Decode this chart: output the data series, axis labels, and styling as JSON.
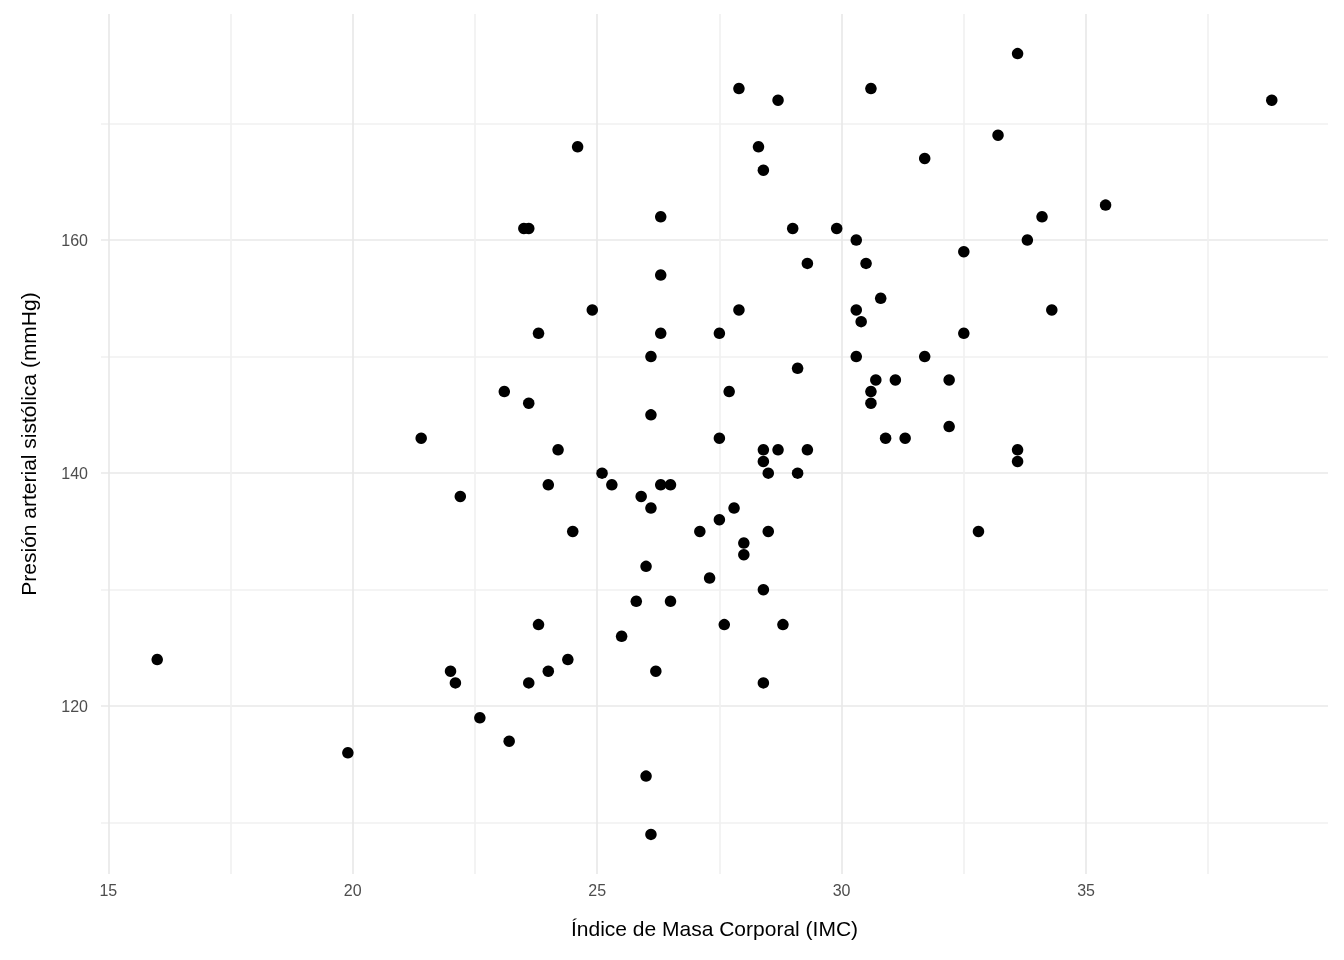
{
  "chart_data": {
    "type": "scatter",
    "xlabel": "Índice de Masa Corporal (IMC)",
    "ylabel": "Presión arterial sistólica (mmHg)",
    "x": [
      16.0,
      19.9,
      21.4,
      22.0,
      22.1,
      22.2,
      22.6,
      23.1,
      23.2,
      23.5,
      23.6,
      23.6,
      23.6,
      23.8,
      23.8,
      24.0,
      24.0,
      24.2,
      24.4,
      24.5,
      24.6,
      24.9,
      25.1,
      25.3,
      25.5,
      25.8,
      25.9,
      26.0,
      26.0,
      26.1,
      26.1,
      26.1,
      26.1,
      26.2,
      26.3,
      26.3,
      26.3,
      26.3,
      26.5,
      26.5,
      27.1,
      27.3,
      27.5,
      27.5,
      27.5,
      27.6,
      27.7,
      27.8,
      27.9,
      27.9,
      28.0,
      28.0,
      28.3,
      28.4,
      28.4,
      28.4,
      28.4,
      28.4,
      28.5,
      28.5,
      28.7,
      28.7,
      28.8,
      29.0,
      29.1,
      29.1,
      29.3,
      29.3,
      29.9,
      30.3,
      30.3,
      30.3,
      30.4,
      30.5,
      30.6,
      30.6,
      30.6,
      30.7,
      30.8,
      30.9,
      31.1,
      31.3,
      31.7,
      31.7,
      32.2,
      32.2,
      32.5,
      32.5,
      32.8,
      33.2,
      33.6,
      33.6,
      33.6,
      33.8,
      34.1,
      34.3,
      35.4,
      38.8
    ],
    "series": [
      {
        "color": "#000000",
        "values": [
          124,
          116,
          143,
          123,
          122,
          138,
          119,
          147,
          117,
          161,
          161,
          146,
          122,
          152,
          127,
          139,
          123,
          142,
          124,
          135,
          168,
          154,
          140,
          139,
          126,
          129,
          138,
          132,
          114,
          150,
          145,
          137,
          109,
          123,
          162,
          157,
          152,
          139,
          139,
          129,
          135,
          131,
          152,
          143,
          136,
          127,
          147,
          137,
          173,
          154,
          134,
          133,
          168,
          166,
          142,
          141,
          130,
          122,
          140,
          135,
          172,
          142,
          127,
          161,
          149,
          140,
          158,
          142,
          161,
          160,
          154,
          150,
          153,
          158,
          173,
          147,
          146,
          148,
          155,
          143,
          148,
          143,
          150,
          167,
          148,
          144,
          159,
          152,
          135,
          169,
          176,
          142,
          141,
          160,
          162,
          154,
          163,
          172
        ]
      }
    ],
    "marker": "circle",
    "xlim": [
      14.85,
      39.95
    ],
    "ylim": [
      105.6,
      179.4
    ],
    "xticks": [
      15,
      {
        "value": 17.5,
        "label": null
      },
      20,
      {
        "value": 22.5,
        "label": null
      },
      25,
      {
        "value": 27.5,
        "label": null
      },
      30,
      {
        "value": 32.5,
        "label": null
      },
      35,
      {
        "value": 37.5,
        "label": null
      }
    ],
    "yticks": [
      {
        "value": 110,
        "label": null
      },
      120,
      {
        "value": 130,
        "label": null
      },
      140,
      {
        "value": 150,
        "label": null
      },
      160,
      {
        "value": 170,
        "label": null
      }
    ],
    "grid": true
  }
}
